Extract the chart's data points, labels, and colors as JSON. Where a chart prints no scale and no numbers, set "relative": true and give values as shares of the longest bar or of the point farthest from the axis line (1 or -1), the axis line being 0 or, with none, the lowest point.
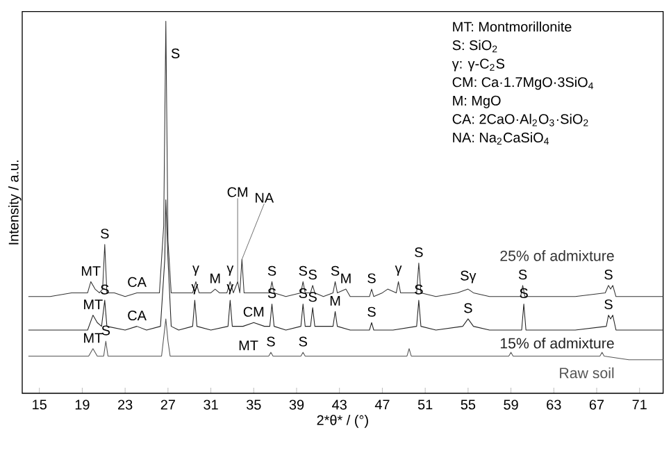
{
  "chart_data": {
    "type": "line",
    "relative": true,
    "xlabel": "2*θ* / (°)",
    "ylabel": "Intensity / a.u.",
    "xlim": [
      13.4,
      73.2
    ],
    "xticks": [
      15,
      19,
      23,
      27,
      31,
      35,
      39,
      43,
      47,
      51,
      55,
      59,
      63,
      67,
      71
    ],
    "grid": false,
    "series": [
      {
        "name": "25% of admixture",
        "color": "#333333",
        "x": [
          14,
          16,
          18,
          19.5,
          19.8,
          20.2,
          20.6,
          20.9,
          21.1,
          21.3,
          22,
          23,
          24.1,
          25,
          26.2,
          26.6,
          26.8,
          27.0,
          27.3,
          28,
          29.3,
          29.6,
          29.9,
          31,
          31.4,
          31.8,
          32.5,
          32.8,
          33.1,
          33.5,
          33.7,
          33.9,
          34.1,
          35,
          36.5,
          36.7,
          36.9,
          38,
          39.4,
          39.6,
          39.8,
          40.3,
          40.5,
          40.7,
          41.5,
          42.4,
          42.6,
          42.8,
          43.6,
          44,
          45.8,
          46.0,
          46.2,
          47,
          47.5,
          48.3,
          48.5,
          48.7,
          49.5,
          50.2,
          50.4,
          50.6,
          52,
          54,
          55,
          55.5,
          57,
          59.9,
          60.1,
          60.3,
          62,
          65,
          67.8,
          68.1,
          68.3,
          68.5,
          68.8,
          70,
          73.2
        ],
        "values": [
          0.26,
          0.26,
          0.27,
          0.27,
          0.3,
          0.28,
          0.27,
          0.28,
          0.4,
          0.27,
          0.27,
          0.26,
          0.27,
          0.27,
          0.27,
          0.45,
          1.0,
          0.41,
          0.27,
          0.27,
          0.27,
          0.3,
          0.27,
          0.27,
          0.28,
          0.27,
          0.27,
          0.3,
          0.27,
          0.3,
          0.27,
          0.36,
          0.27,
          0.27,
          0.27,
          0.3,
          0.27,
          0.26,
          0.27,
          0.3,
          0.27,
          0.27,
          0.29,
          0.27,
          0.26,
          0.27,
          0.3,
          0.27,
          0.28,
          0.26,
          0.26,
          0.28,
          0.26,
          0.27,
          0.28,
          0.27,
          0.3,
          0.27,
          0.27,
          0.27,
          0.35,
          0.27,
          0.26,
          0.27,
          0.28,
          0.27,
          0.26,
          0.26,
          0.29,
          0.26,
          0.26,
          0.26,
          0.27,
          0.29,
          0.28,
          0.29,
          0.26,
          0.26,
          0.26
        ]
      },
      {
        "name": "15% of admixture",
        "color": "#222222",
        "x": [
          14,
          17,
          19.5,
          20.0,
          20.4,
          20.8,
          21.1,
          21.3,
          23,
          24.1,
          25,
          26.3,
          26.7,
          26.8,
          27.0,
          27.3,
          28,
          29.3,
          29.5,
          29.7,
          31,
          32.6,
          32.8,
          33.0,
          34,
          35,
          36,
          36.5,
          36.7,
          36.9,
          38,
          39.4,
          39.6,
          39.8,
          40.3,
          40.5,
          40.7,
          42.4,
          42.6,
          42.8,
          44,
          45.8,
          46.0,
          46.2,
          48,
          50.2,
          50.4,
          50.6,
          52,
          54.5,
          55,
          55.5,
          57,
          60,
          60.2,
          60.4,
          62,
          65,
          67.9,
          68.1,
          68.3,
          68.5,
          68.8,
          70,
          73.2
        ],
        "values": [
          0.17,
          0.17,
          0.17,
          0.21,
          0.19,
          0.18,
          0.25,
          0.18,
          0.17,
          0.18,
          0.17,
          0.18,
          0.36,
          0.52,
          0.36,
          0.18,
          0.17,
          0.18,
          0.25,
          0.18,
          0.17,
          0.18,
          0.25,
          0.18,
          0.18,
          0.19,
          0.18,
          0.18,
          0.24,
          0.18,
          0.17,
          0.18,
          0.24,
          0.18,
          0.18,
          0.23,
          0.18,
          0.18,
          0.22,
          0.18,
          0.17,
          0.17,
          0.19,
          0.17,
          0.17,
          0.18,
          0.25,
          0.18,
          0.17,
          0.18,
          0.2,
          0.18,
          0.17,
          0.17,
          0.24,
          0.17,
          0.17,
          0.17,
          0.18,
          0.21,
          0.2,
          0.21,
          0.17,
          0.17,
          0.17
        ]
      },
      {
        "name": "Raw soil",
        "color": "#555555",
        "x": [
          14,
          18,
          19.6,
          20.0,
          20.4,
          21.0,
          21.2,
          21.4,
          24,
          26.4,
          26.6,
          26.8,
          27.0,
          27.2,
          30,
          34.5,
          36.4,
          36.6,
          36.8,
          39.4,
          39.6,
          39.8,
          42,
          45,
          49.3,
          49.5,
          49.7,
          53,
          58.8,
          59.0,
          59.2,
          63,
          67.3,
          67.5,
          67.7,
          70,
          73.2
        ],
        "values": [
          0.1,
          0.1,
          0.1,
          0.12,
          0.1,
          0.1,
          0.14,
          0.1,
          0.1,
          0.1,
          0.15,
          0.2,
          0.14,
          0.1,
          0.1,
          0.1,
          0.1,
          0.11,
          0.1,
          0.1,
          0.11,
          0.1,
          0.1,
          0.1,
          0.1,
          0.12,
          0.1,
          0.1,
          0.1,
          0.11,
          0.1,
          0.1,
          0.1,
          0.11,
          0.1,
          0.09,
          0.09
        ]
      }
    ],
    "annotations": [
      "MT: Montmorillonite",
      "S: SiO$_{2}$",
      "γ: γ-C$_{2}$S",
      "CM: Ca·1.7MgO·3SiO$_{4}$",
      "M: MgO",
      "CA: 2CaO·Al$_{2}$O$_{3}$·SiO$_{2}$",
      "NA: Na$_{2}$CaSiO$_{4}$",
      {
        "text": "S",
        "x": 26.8,
        "y": 1.0
      },
      {
        "text": "S",
        "x": 21.1,
        "y": 0.4
      },
      {
        "text": "MT",
        "x": 19.8,
        "y": 0.3
      },
      {
        "text": "CA",
        "x": 24.1,
        "y": 0.27
      },
      {
        "text": "γ",
        "x": 29.6,
        "y": 0.3
      },
      {
        "text": "M",
        "x": 31.4,
        "y": 0.28
      },
      {
        "text": "γ",
        "x": 32.8,
        "y": 0.3
      },
      {
        "text": "CM",
        "x": 33.5,
        "y": 0.3
      },
      {
        "text": "NA",
        "x": 33.9,
        "y": 0.36
      },
      {
        "text": "S",
        "x": 36.7,
        "y": 0.3
      },
      {
        "text": "S",
        "x": 39.6,
        "y": 0.3
      },
      {
        "text": "S",
        "x": 40.5,
        "y": 0.29
      },
      {
        "text": "S",
        "x": 42.6,
        "y": 0.3
      },
      {
        "text": "M",
        "x": 43.6,
        "y": 0.28
      },
      {
        "text": "S",
        "x": 46.0,
        "y": 0.28
      },
      {
        "text": "γ",
        "x": 48.5,
        "y": 0.3
      },
      {
        "text": "S",
        "x": 50.4,
        "y": 0.35
      },
      {
        "text": "Sγ",
        "x": 55,
        "y": 0.28
      },
      {
        "text": "S",
        "x": 60.1,
        "y": 0.29
      },
      {
        "text": "S",
        "x": 68.1,
        "y": 0.29
      },
      {
        "text": "MT",
        "x": 20.0,
        "y": 0.21
      },
      {
        "text": "S",
        "x": 21.1,
        "y": 0.25
      },
      {
        "text": "CA",
        "x": 24.1,
        "y": 0.18
      },
      {
        "text": "γ",
        "x": 29.5,
        "y": 0.25
      },
      {
        "text": "γ",
        "x": 32.8,
        "y": 0.25
      },
      {
        "text": "CM",
        "x": 35,
        "y": 0.19
      },
      {
        "text": "S",
        "x": 36.7,
        "y": 0.24
      },
      {
        "text": "S",
        "x": 39.6,
        "y": 0.24
      },
      {
        "text": "S",
        "x": 40.5,
        "y": 0.23
      },
      {
        "text": "M",
        "x": 42.6,
        "y": 0.22
      },
      {
        "text": "S",
        "x": 46.0,
        "y": 0.19
      },
      {
        "text": "S",
        "x": 50.4,
        "y": 0.25
      },
      {
        "text": "S",
        "x": 55,
        "y": 0.2
      },
      {
        "text": "S",
        "x": 60.2,
        "y": 0.24
      },
      {
        "text": "S",
        "x": 68.1,
        "y": 0.21
      },
      {
        "text": "MT",
        "x": 20.0,
        "y": 0.12
      },
      {
        "text": "S",
        "x": 21.2,
        "y": 0.14
      },
      {
        "text": "MT",
        "x": 34.5,
        "y": 0.1
      },
      {
        "text": "S",
        "x": 36.6,
        "y": 0.11
      },
      {
        "text": "S",
        "x": 39.6,
        "y": 0.11
      }
    ]
  }
}
